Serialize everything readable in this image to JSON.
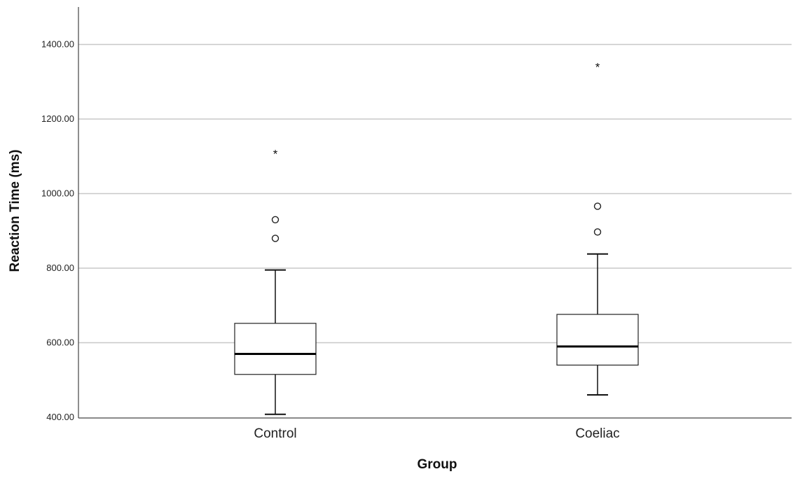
{
  "chart_data": {
    "type": "box",
    "xlabel": "Group",
    "ylabel": "Reaction Time (ms)",
    "ylim": [
      400,
      1500
    ],
    "yticks": [
      400,
      600,
      800,
      1000,
      1200,
      1400
    ],
    "ytick_labels": [
      "400.00",
      "600.00",
      "800.00",
      "1000.00",
      "1200.00",
      "1400.00"
    ],
    "grid": true,
    "categories": [
      "Control",
      "Coeliac"
    ],
    "boxes": [
      {
        "category": "Control",
        "whisker_low": 408,
        "q1": 515,
        "median": 570,
        "q3": 652,
        "whisker_high": 795,
        "outliers": [
          880,
          930
        ],
        "extremes": [
          1107
        ]
      },
      {
        "category": "Coeliac",
        "whisker_low": 460,
        "q1": 540,
        "median": 590,
        "q3": 676,
        "whisker_high": 838,
        "outliers": [
          897,
          966
        ],
        "extremes": [
          1340
        ]
      }
    ]
  }
}
